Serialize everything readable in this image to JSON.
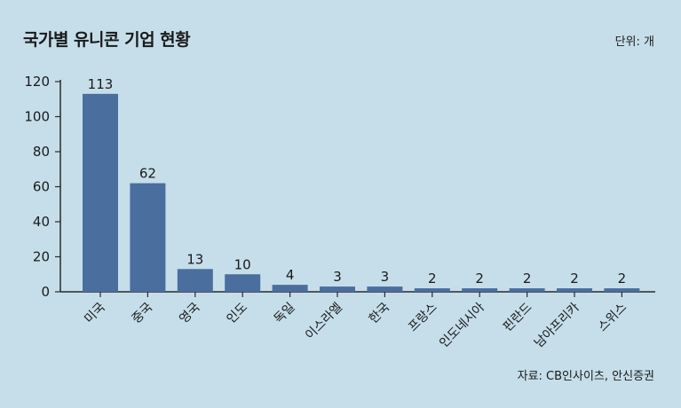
{
  "chart_data": {
    "type": "bar",
    "title": "국가별 유니콘 기업 현황",
    "unit": "단위: 개",
    "source": "자료: CB인사이츠, 안신증권",
    "categories": [
      "미국",
      "중국",
      "영국",
      "인도",
      "독일",
      "이스라엘",
      "한국",
      "프랑스",
      "인도네시아",
      "핀란드",
      "남아프리카",
      "스위스"
    ],
    "values": [
      113,
      62,
      13,
      10,
      4,
      3,
      3,
      2,
      2,
      2,
      2,
      2
    ],
    "data_labels": [
      "113",
      "62",
      "13",
      "10",
      "4",
      "3",
      "3",
      "2",
      "2",
      "2",
      "2",
      "2"
    ],
    "yticks": [
      "0",
      "20",
      "40",
      "60",
      "80",
      "100",
      "120"
    ],
    "ylim": [
      0,
      120
    ],
    "bar_color": "#4a6e9e",
    "axis_color": "#2a2a2a",
    "grid": false
  }
}
